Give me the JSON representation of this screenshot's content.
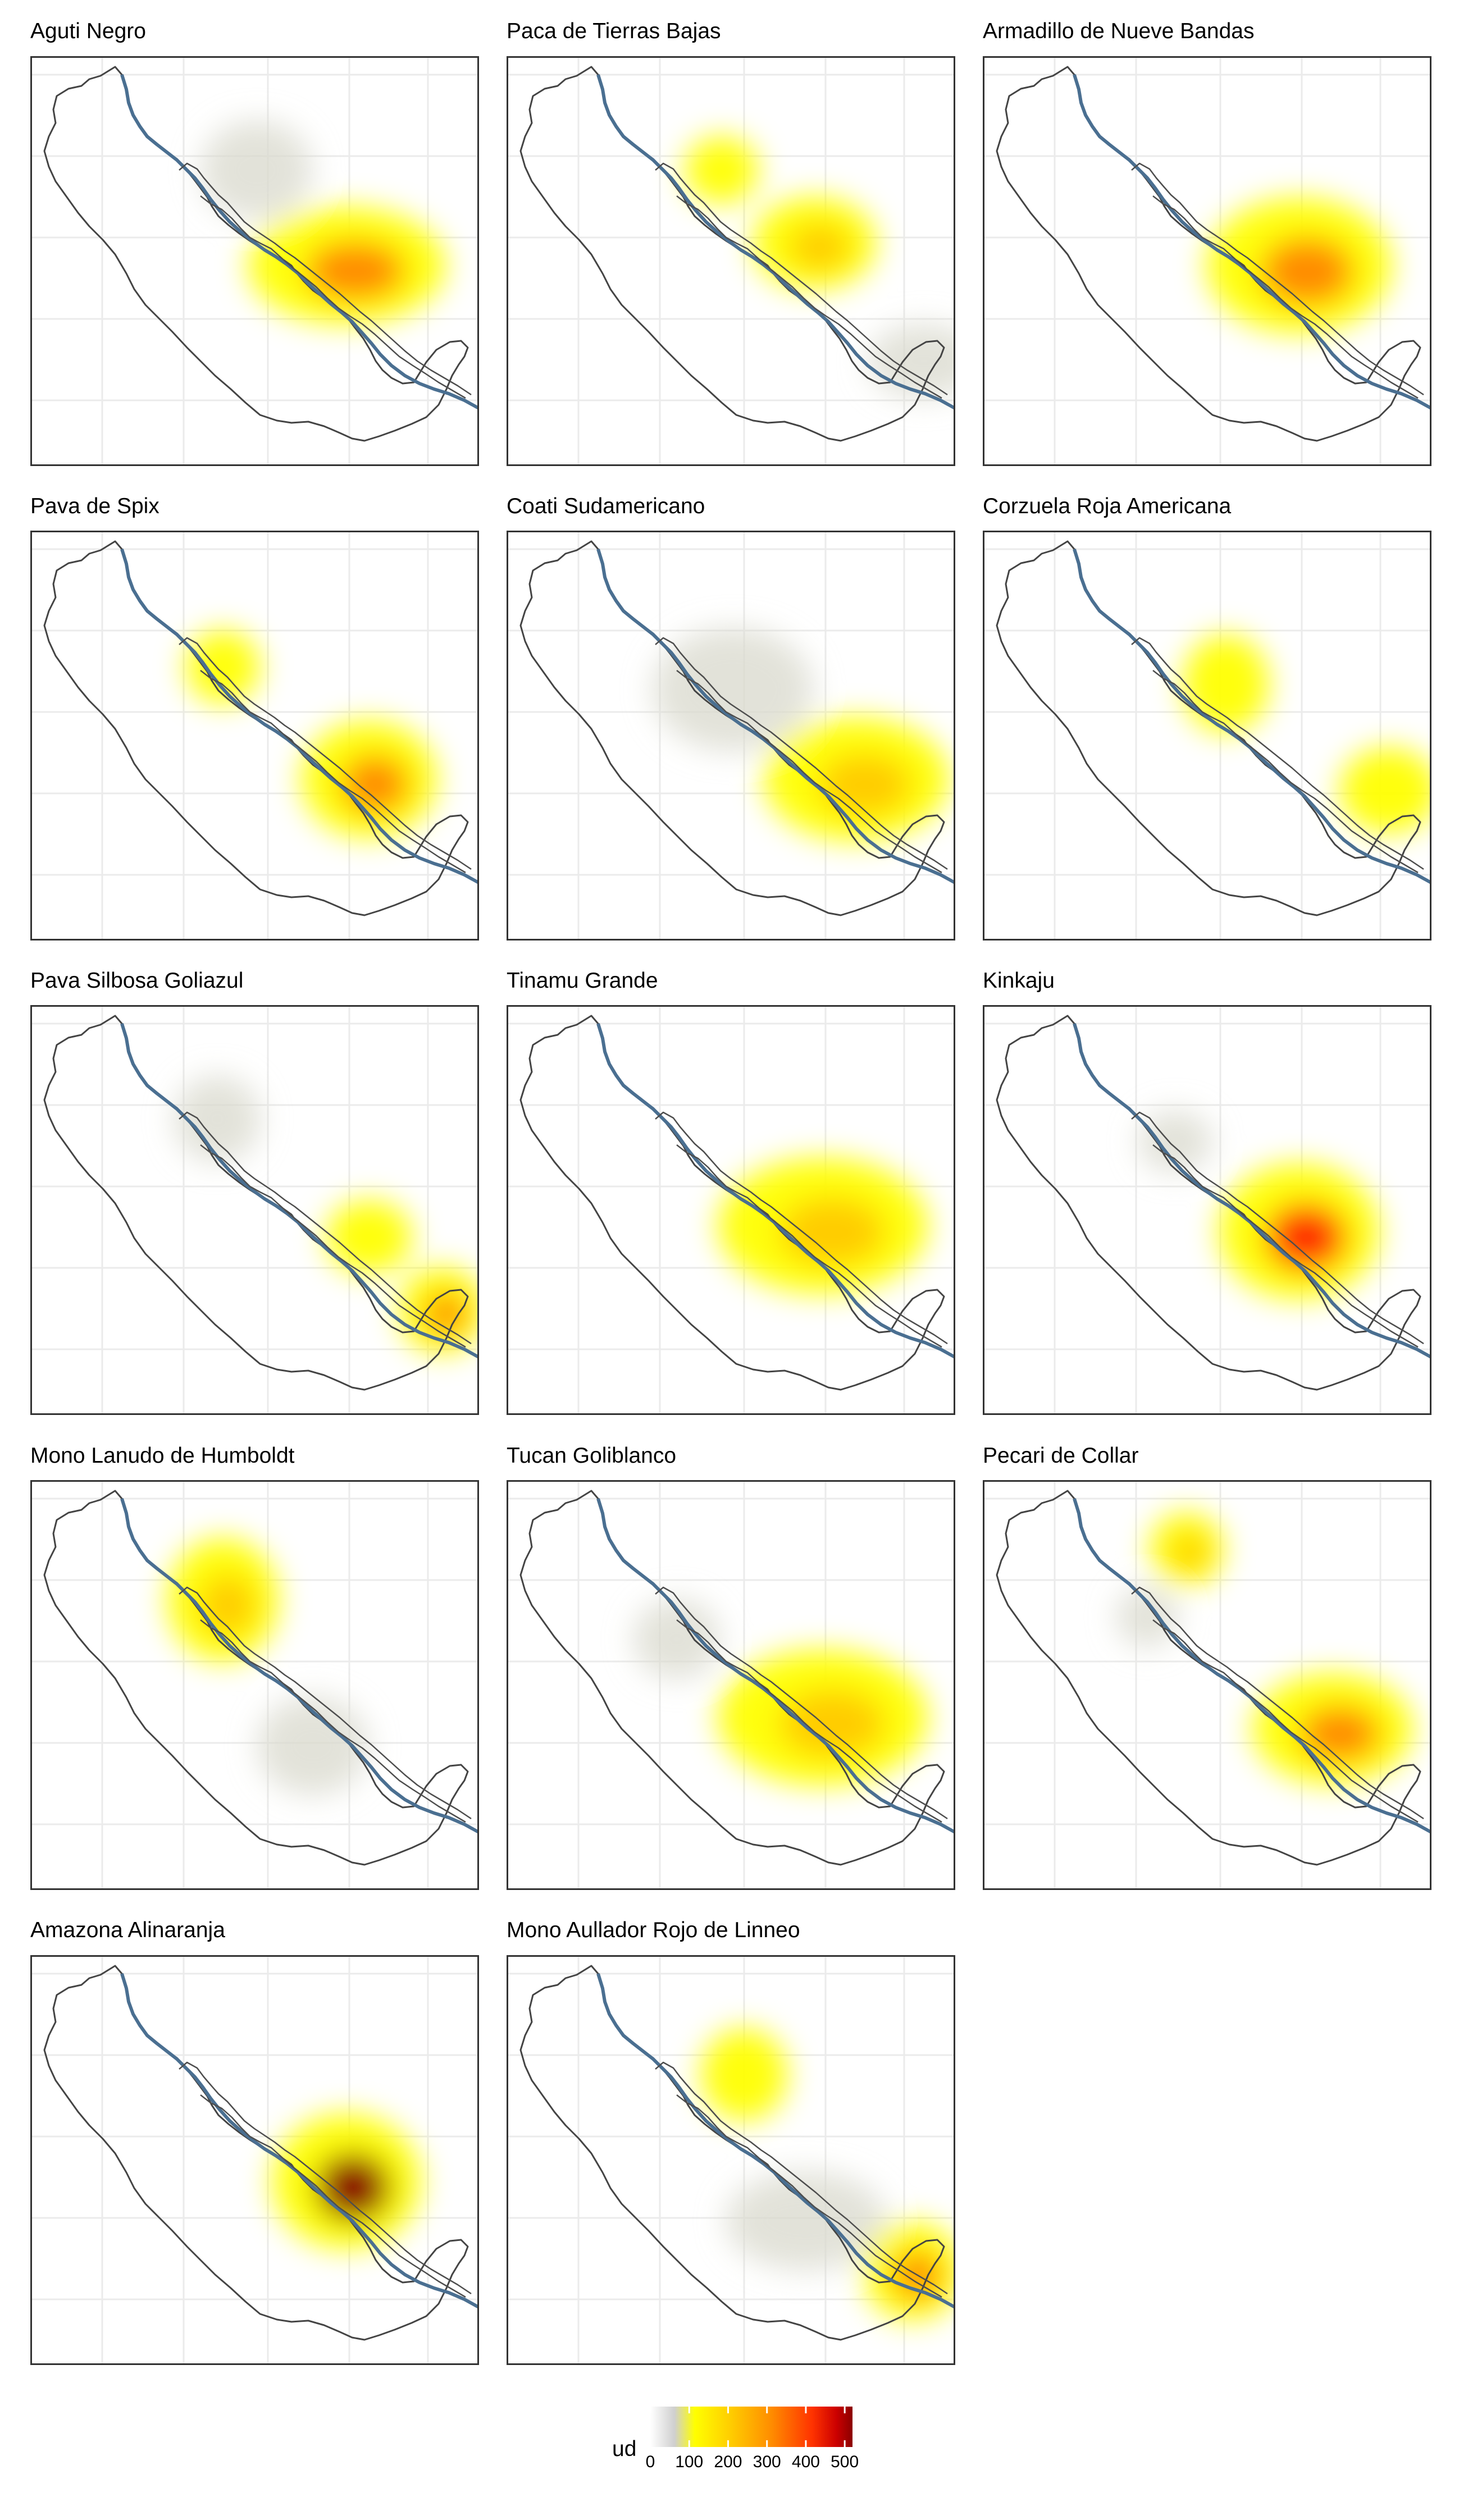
{
  "chart_data": {
    "type": "heatmap",
    "layout": "faceted density maps (3 columns)",
    "legend": {
      "title": "ud",
      "ticks": [
        0,
        100,
        200,
        300,
        400,
        500
      ],
      "colors": [
        "#ffffff",
        "#cfcfcf",
        "#ffff00",
        "#ffcc00",
        "#ff8c00",
        "#ff3300",
        "#cc0000",
        "#8b0000"
      ]
    },
    "grid": true,
    "panels": [
      {
        "title": "Aguti Negro",
        "peak": 220,
        "hotspots": [
          {
            "at": "center-right along river",
            "level": 220
          },
          {
            "at": "upper center",
            "level": 40
          }
        ]
      },
      {
        "title": "Paca de Tierras Bajas",
        "peak": 160,
        "hotspots": [
          {
            "at": "center-right along river",
            "level": 160
          },
          {
            "at": "upper left",
            "level": 100
          },
          {
            "at": "lower right",
            "level": 60
          }
        ]
      },
      {
        "title": "Armadillo de Nueve Bandas",
        "peak": 260,
        "hotspots": [
          {
            "at": "center-right along river",
            "level": 260
          }
        ]
      },
      {
        "title": "Pava de Spix",
        "peak": 210,
        "hotspots": [
          {
            "at": "upper left",
            "level": 120
          },
          {
            "at": "center-right",
            "level": 210
          }
        ]
      },
      {
        "title": "Coati Sudamericano",
        "peak": 200,
        "hotspots": [
          {
            "at": "lower right along river",
            "level": 200
          },
          {
            "at": "center",
            "level": 50
          }
        ]
      },
      {
        "title": "Corzuela Roja Americana",
        "peak": 120,
        "hotspots": [
          {
            "at": "upper center",
            "level": 120
          },
          {
            "at": "lower right",
            "level": 110
          }
        ]
      },
      {
        "title": "Pava Silbosa Goliazul",
        "peak": 220,
        "hotspots": [
          {
            "at": "upper left",
            "level": 60
          },
          {
            "at": "center right",
            "level": 120
          },
          {
            "at": "lower right",
            "level": 220
          }
        ]
      },
      {
        "title": "Tinamu Grande",
        "peak": 150,
        "hotspots": [
          {
            "at": "center-right along river",
            "level": 150
          }
        ]
      },
      {
        "title": "Kinkaju",
        "peak": 330,
        "hotspots": [
          {
            "at": "center-right",
            "level": 330
          },
          {
            "at": "upper center",
            "level": 40
          }
        ]
      },
      {
        "title": "Mono Lanudo de Humboldt",
        "peak": 160,
        "hotspots": [
          {
            "at": "upper left",
            "level": 160
          },
          {
            "at": "lower center",
            "level": 60
          }
        ]
      },
      {
        "title": "Tucan Goliblanco",
        "peak": 200,
        "hotspots": [
          {
            "at": "center-right",
            "level": 200
          },
          {
            "at": "center left",
            "level": 50
          }
        ]
      },
      {
        "title": "Pecari de Collar",
        "peak": 220,
        "hotspots": [
          {
            "at": "top",
            "level": 150
          },
          {
            "at": "upper left",
            "level": 60
          },
          {
            "at": "center-right",
            "level": 220
          }
        ]
      },
      {
        "title": "Amazona Alinaranja",
        "peak": 520,
        "hotspots": [
          {
            "at": "center-right along river",
            "level": 520
          }
        ]
      },
      {
        "title": "Mono Aullador Rojo de Linneo",
        "peak": 220,
        "hotspots": [
          {
            "at": "upper left",
            "level": 130
          },
          {
            "at": "lower center",
            "level": 50
          },
          {
            "at": "lower right",
            "level": 220
          }
        ]
      }
    ]
  }
}
